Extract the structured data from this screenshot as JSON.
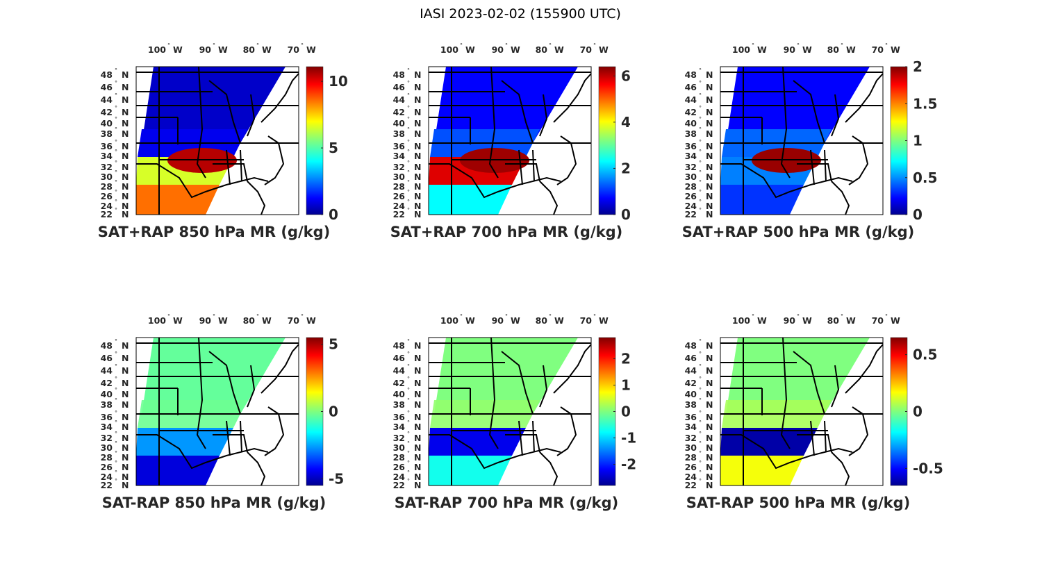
{
  "suptitle": "IASI 2023-02-02 (155900 UTC)",
  "chart_data": [
    {
      "type": "heatmap",
      "subtype": "map",
      "title": "",
      "xlabel": "SAT+RAP 850 hPa MR (g/kg)",
      "lon_ticks": [
        "100",
        "90",
        "80",
        "70"
      ],
      "lon_hemi": "W",
      "lat_ticks": [
        "48",
        "46",
        "44",
        "42",
        "40",
        "38",
        "36",
        "34",
        "32",
        "30",
        "28",
        "26",
        "24",
        "22"
      ],
      "lat_hemi": "N",
      "colormap": "jet",
      "clim": [
        0,
        11.1
      ],
      "colorbar_ticks": [
        {
          "value": 0,
          "label": "0"
        },
        {
          "value": 5,
          "label": "5"
        },
        {
          "value": 10,
          "label": "10"
        }
      ],
      "field": {
        "north": 0.8,
        "central": 1.2,
        "south_land": 6.5,
        "gulf": 8.5,
        "lower_ms_valley": 10.5
      }
    },
    {
      "type": "heatmap",
      "subtype": "map",
      "title": "",
      "xlabel": "SAT+RAP 700 hPa MR (g/kg)",
      "lon_ticks": [
        "100",
        "90",
        "80",
        "70"
      ],
      "lon_hemi": "W",
      "lat_ticks": [
        "48",
        "46",
        "44",
        "42",
        "40",
        "38",
        "36",
        "34",
        "32",
        "30",
        "28",
        "26",
        "24",
        "22"
      ],
      "lat_hemi": "N",
      "colormap": "jet",
      "clim": [
        0,
        6.4
      ],
      "colorbar_ticks": [
        {
          "value": 0,
          "label": "0"
        },
        {
          "value": 2,
          "label": "2"
        },
        {
          "value": 4,
          "label": "4"
        },
        {
          "value": 6,
          "label": "6"
        }
      ],
      "field": {
        "north": 0.8,
        "central": 1.3,
        "south_land": 5.8,
        "gulf": 2.4,
        "lower_ms_valley": 6.2
      }
    },
    {
      "type": "heatmap",
      "subtype": "map",
      "title": "",
      "xlabel": "SAT+RAP 500 hPa MR (g/kg)",
      "lon_ticks": [
        "100",
        "90",
        "80",
        "70"
      ],
      "lon_hemi": "W",
      "lat_ticks": [
        "48",
        "46",
        "44",
        "42",
        "40",
        "38",
        "36",
        "34",
        "32",
        "30",
        "28",
        "26",
        "24",
        "22"
      ],
      "lat_hemi": "N",
      "colormap": "jet",
      "clim": [
        0,
        2
      ],
      "colorbar_ticks": [
        {
          "value": 0,
          "label": "0"
        },
        {
          "value": 0.5,
          "label": "0.5"
        },
        {
          "value": 1,
          "label": "1"
        },
        {
          "value": 1.5,
          "label": "1.5"
        },
        {
          "value": 2,
          "label": "2"
        }
      ],
      "field": {
        "north": 0.25,
        "central": 0.45,
        "south_land": 0.5,
        "gulf": 0.35,
        "lower_ms_valley": 1.95
      }
    },
    {
      "type": "heatmap",
      "subtype": "map",
      "title": "",
      "xlabel": "SAT-RAP 850 hPa MR (g/kg)",
      "lon_ticks": [
        "100",
        "90",
        "80",
        "70"
      ],
      "lon_hemi": "W",
      "lat_ticks": [
        "48",
        "46",
        "44",
        "42",
        "40",
        "38",
        "36",
        "34",
        "32",
        "30",
        "28",
        "26",
        "24",
        "22"
      ],
      "lat_hemi": "N",
      "colormap": "jet",
      "clim": [
        -5.5,
        5.5
      ],
      "colorbar_ticks": [
        {
          "value": -5,
          "label": "-5"
        },
        {
          "value": 0,
          "label": "0"
        },
        {
          "value": 5,
          "label": "5"
        }
      ],
      "field": {
        "north": -0.3,
        "central": -0.2,
        "south_land": -2.5,
        "gulf": -4.5,
        "lower_ms_valley": null
      }
    },
    {
      "type": "heatmap",
      "subtype": "map",
      "title": "",
      "xlabel": "SAT-RAP 700 hPa MR (g/kg)",
      "lon_ticks": [
        "100",
        "90",
        "80",
        "70"
      ],
      "lon_hemi": "W",
      "lat_ticks": [
        "48",
        "46",
        "44",
        "42",
        "40",
        "38",
        "36",
        "34",
        "32",
        "30",
        "28",
        "26",
        "24",
        "22"
      ],
      "lat_hemi": "N",
      "colormap": "jet",
      "clim": [
        -2.8,
        2.8
      ],
      "colorbar_ticks": [
        {
          "value": -2,
          "label": "-2"
        },
        {
          "value": -1,
          "label": "-1"
        },
        {
          "value": 0,
          "label": "0"
        },
        {
          "value": 1,
          "label": "1"
        },
        {
          "value": 2,
          "label": "2"
        }
      ],
      "field": {
        "north": 0.0,
        "central": 0.1,
        "south_land": -2.2,
        "gulf": -0.6,
        "lower_ms_valley": null
      }
    },
    {
      "type": "heatmap",
      "subtype": "map",
      "title": "",
      "xlabel": "SAT-RAP 500 hPa MR (g/kg)",
      "lon_ticks": [
        "100",
        "90",
        "80",
        "70"
      ],
      "lon_hemi": "W",
      "lat_ticks": [
        "48",
        "46",
        "44",
        "42",
        "40",
        "38",
        "36",
        "34",
        "32",
        "30",
        "28",
        "26",
        "24",
        "22"
      ],
      "lat_hemi": "N",
      "colormap": "jet",
      "clim": [
        -0.65,
        0.65
      ],
      "colorbar_ticks": [
        {
          "value": -0.5,
          "label": "-0.5"
        },
        {
          "value": 0,
          "label": "0"
        },
        {
          "value": 0.5,
          "label": "0.5"
        }
      ],
      "field": {
        "north": 0.0,
        "central": 0.05,
        "south_land": -0.6,
        "gulf": 0.15,
        "lower_ms_valley": null
      }
    }
  ]
}
